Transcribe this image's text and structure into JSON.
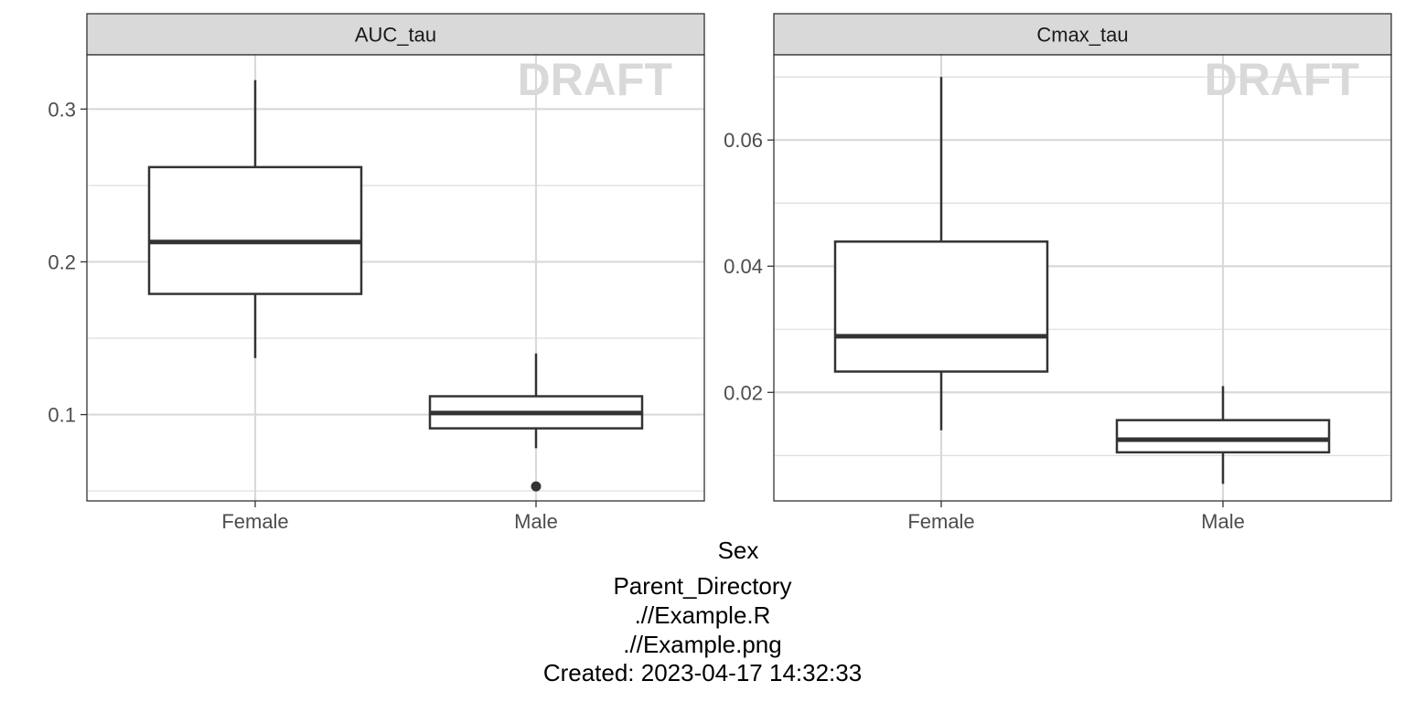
{
  "watermark": "DRAFT",
  "x_axis_title": "Sex",
  "footer_lines": [
    "Parent_Directory",
    ".//Example.R",
    ".//Example.png",
    "Created: 2023-04-17 14:32:33"
  ],
  "colors": {
    "strip_fill": "#d9d9d9",
    "grid": "#d9d9d9",
    "box_stroke": "#333333",
    "watermark": "#d9d9d9",
    "tick_text": "#4d4d4d"
  },
  "chart_data": [
    {
      "type": "box",
      "title": "AUC_tau",
      "categories": [
        "Female",
        "Male"
      ],
      "xlabel": "Sex",
      "ylabel": "",
      "ylim": [
        0.0435,
        0.3355
      ],
      "yticks": [
        0.1,
        0.2,
        0.3
      ],
      "ytick_labels": [
        "0.1",
        "0.2",
        "0.3"
      ],
      "yminor": [
        0.05,
        0.15,
        0.25
      ],
      "grid": true,
      "boxes": [
        {
          "category": "Female",
          "whisker_low": 0.137,
          "q1": 0.179,
          "median": 0.213,
          "q3": 0.262,
          "whisker_high": 0.319,
          "outliers": []
        },
        {
          "category": "Male",
          "whisker_low": 0.078,
          "q1": 0.091,
          "median": 0.101,
          "q3": 0.112,
          "whisker_high": 0.14,
          "outliers": [
            0.053
          ]
        }
      ]
    },
    {
      "type": "box",
      "title": "Cmax_tau",
      "categories": [
        "Female",
        "Male"
      ],
      "xlabel": "Sex",
      "ylabel": "",
      "ylim": [
        0.0028,
        0.0735
      ],
      "yticks": [
        0.02,
        0.04,
        0.06
      ],
      "ytick_labels": [
        "0.02",
        "0.04",
        "0.06"
      ],
      "yminor": [
        0.01,
        0.03,
        0.05,
        0.07
      ],
      "grid": true,
      "boxes": [
        {
          "category": "Female",
          "whisker_low": 0.014,
          "q1": 0.0233,
          "median": 0.0289,
          "q3": 0.0439,
          "whisker_high": 0.07,
          "outliers": []
        },
        {
          "category": "Male",
          "whisker_low": 0.0055,
          "q1": 0.0105,
          "median": 0.0125,
          "q3": 0.0156,
          "whisker_high": 0.021,
          "outliers": []
        }
      ]
    }
  ]
}
